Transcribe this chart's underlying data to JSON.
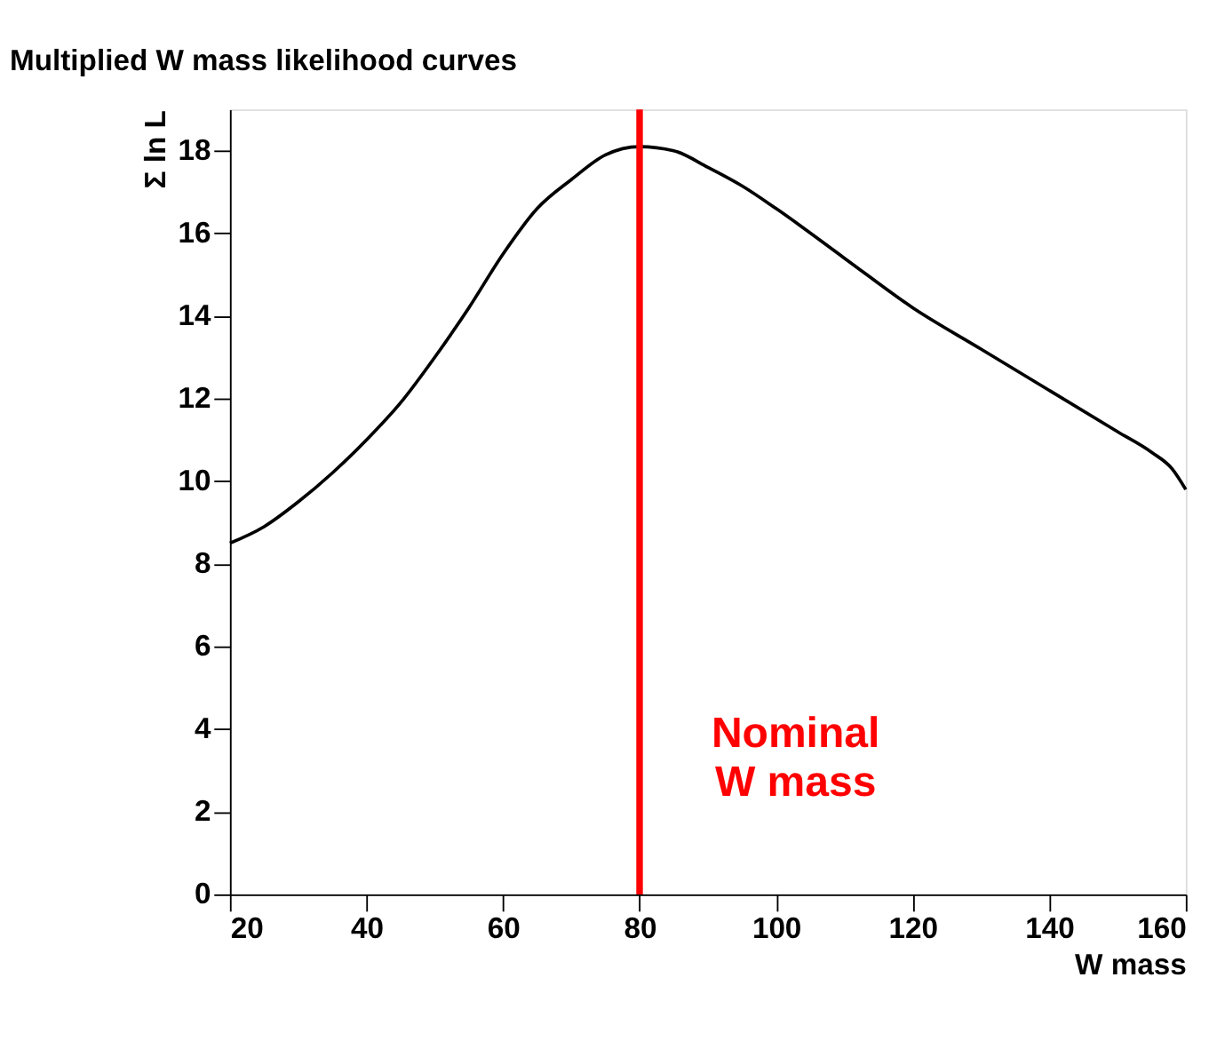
{
  "chart_data": {
    "type": "line",
    "title": "Multiplied W mass likelihood curves",
    "xlabel": "W mass",
    "ylabel": "Σ ln L",
    "x": [
      20,
      25,
      30,
      35,
      40,
      45,
      50,
      55,
      60,
      65,
      70,
      75,
      80,
      85,
      90,
      95,
      100,
      110,
      120,
      130,
      140,
      150,
      155,
      158,
      160
    ],
    "series": [
      {
        "color": "#000000",
        "values": [
          8.5,
          8.9,
          9.5,
          10.2,
          11.0,
          11.9,
          13.0,
          14.2,
          15.5,
          16.6,
          17.3,
          17.9,
          18.1,
          18.0,
          17.6,
          17.15,
          16.6,
          15.4,
          14.2,
          13.2,
          12.2,
          11.2,
          10.7,
          10.3,
          9.8
        ]
      }
    ],
    "xlim": [
      20,
      160
    ],
    "xticks": [
      20,
      40,
      60,
      80,
      100,
      120,
      140,
      160
    ],
    "ylim": [
      0,
      19
    ],
    "yticks": [
      0,
      2,
      4,
      6,
      8,
      10,
      12,
      14,
      16,
      18
    ],
    "ref_lines": [
      {
        "axis": "x",
        "value": 80,
        "label": "Nominal\nW mass",
        "color": "#ff0000"
      }
    ],
    "grid": false,
    "marker": "none",
    "line_style": "solid"
  }
}
